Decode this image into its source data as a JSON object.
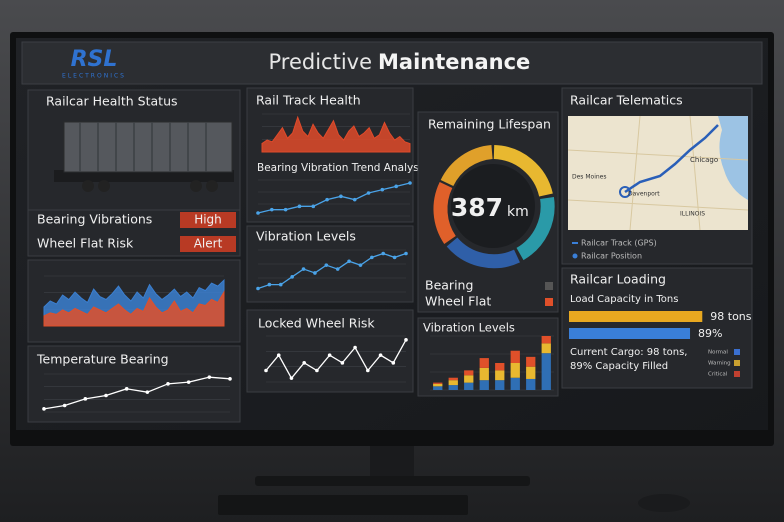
{
  "header": {
    "logo": "RSL",
    "logo_sub": "ELECTRONICS",
    "title_light": "Predictive",
    "title_bold": "Maintenance"
  },
  "health": {
    "title": "Railcar Health Status",
    "rows": [
      {
        "label": "Bearing Vibrations",
        "status": "High"
      },
      {
        "label": "Wheel Flat Risk",
        "status": "Alert"
      }
    ]
  },
  "health_chart": {
    "type": "area",
    "series": [
      {
        "color": "#3b7fd0",
        "values": [
          10,
          14,
          12,
          18,
          15,
          20,
          16,
          13,
          22,
          17,
          15,
          19,
          24,
          18,
          14,
          20,
          16,
          25,
          19,
          15,
          18,
          22,
          17,
          20,
          16,
          23,
          21,
          26,
          24,
          28
        ]
      },
      {
        "color": "#e0502a",
        "values": [
          4,
          6,
          5,
          8,
          6,
          9,
          7,
          5,
          10,
          8,
          6,
          9,
          12,
          8,
          5,
          9,
          7,
          16,
          10,
          6,
          8,
          14,
          7,
          9,
          6,
          12,
          11,
          15,
          13,
          20
        ]
      }
    ]
  },
  "temperature": {
    "title": "Temperature Bearing",
    "type": "line",
    "color": "#ffffff",
    "values": [
      12,
      14,
      18,
      20,
      24,
      22,
      27,
      28,
      31,
      30
    ]
  },
  "track": {
    "title": "Rail Track Health",
    "type": "area",
    "color": "#e04a2a",
    "values": [
      3,
      5,
      4,
      8,
      12,
      6,
      9,
      18,
      10,
      7,
      14,
      9,
      6,
      11,
      16,
      8,
      5,
      10,
      13,
      7,
      9,
      12,
      6,
      8,
      15,
      9,
      5,
      7,
      4,
      3
    ]
  },
  "bearing_trend": {
    "title": "Bearing Vibration Trend Analysis",
    "type": "line",
    "color": "#4aa3e8",
    "values": [
      5,
      6,
      6,
      7,
      7,
      9,
      10,
      9,
      11,
      12,
      13,
      14
    ]
  },
  "vibration_levels": {
    "title": "Vibration Levels",
    "type": "line",
    "color": "#4aa3e8",
    "values": [
      3,
      4,
      4,
      6,
      8,
      7,
      9,
      8,
      10,
      9,
      11,
      12,
      11,
      12
    ]
  },
  "locked_wheel": {
    "title": "Locked Wheel Risk",
    "type": "line",
    "color": "#ffffff",
    "values": [
      6,
      8,
      5,
      7,
      6,
      8,
      7,
      9,
      6,
      8,
      7,
      10
    ]
  },
  "lifespan": {
    "title": "Remaining Lifespan",
    "value": 387,
    "unit": "km",
    "legend": [
      {
        "name": "Bearing",
        "color": "#555555"
      },
      {
        "name": "Wheel Flat",
        "color": "#e0502a"
      }
    ]
  },
  "vibration_bars": {
    "title": "Vibration Levels",
    "type": "bar",
    "series": [
      {
        "color": "#2f6fb5",
        "values": [
          3,
          4,
          6,
          8,
          8,
          10,
          9,
          30
        ]
      },
      {
        "color": "#e8b830",
        "values": [
          2,
          4,
          6,
          10,
          8,
          12,
          10,
          8
        ]
      },
      {
        "color": "#e0502a",
        "values": [
          1,
          2,
          4,
          8,
          6,
          10,
          8,
          6
        ]
      }
    ]
  },
  "telematics": {
    "title": "Railcar Telematics",
    "map_labels": [
      "Des Moines",
      "Davenport",
      "Chicago",
      "ILLINOIS"
    ],
    "legend": [
      "Railcar Track (GPS)",
      "Railcar Position"
    ]
  },
  "loading": {
    "title": "Railcar Loading",
    "subtitle": "Load Capacity in Tons",
    "bars": [
      {
        "value": 98,
        "label": "98 tons",
        "color": "#e8a820"
      },
      {
        "value": 89,
        "label": "89%",
        "color": "#3a7fd8"
      }
    ],
    "summary": [
      "Current Cargo: 98 tons,",
      "89% Capacity Filled"
    ],
    "legend": [
      {
        "name": "Normal",
        "color": "#3a6fd0"
      },
      {
        "name": "Warning",
        "color": "#c8a030"
      },
      {
        "name": "Critical",
        "color": "#c04030"
      }
    ]
  }
}
